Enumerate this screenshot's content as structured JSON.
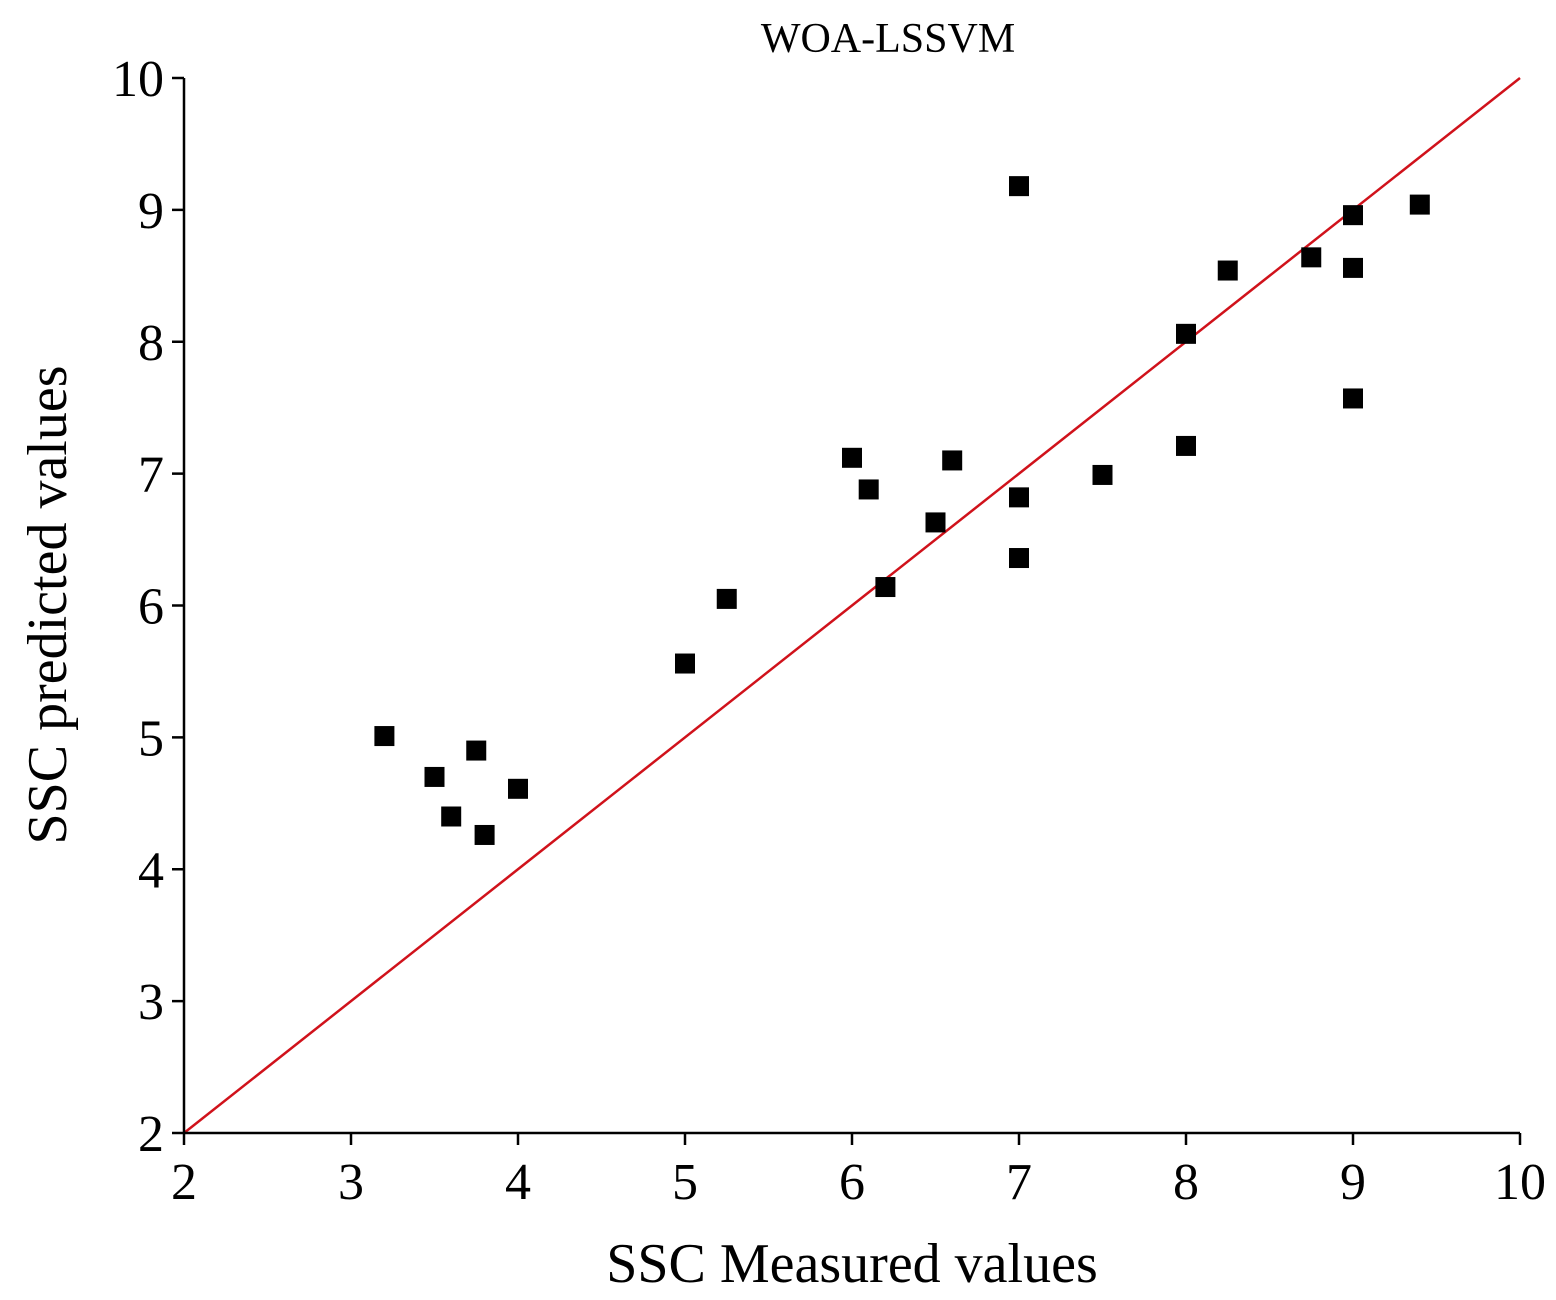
{
  "chart_data": {
    "type": "scatter",
    "title": "WOA-LSSVM",
    "xlabel": "SSC Measured values",
    "ylabel": "SSC predicted values",
    "xlim": [
      2,
      10
    ],
    "ylim": [
      2,
      10
    ],
    "xticks": [
      "2",
      "3",
      "4",
      "5",
      "6",
      "7",
      "8",
      "9",
      "10"
    ],
    "yticks": [
      "2",
      "3",
      "4",
      "5",
      "6",
      "7",
      "8",
      "9",
      "10"
    ],
    "grid": false,
    "marker_color": "#000000",
    "reference_line": {
      "from": [
        2,
        2
      ],
      "to": [
        10,
        10
      ],
      "color": "#d0121b"
    },
    "series": [
      {
        "points": [
          [
            3.2,
            5.01
          ],
          [
            3.5,
            4.7
          ],
          [
            3.6,
            4.4
          ],
          [
            3.75,
            4.9
          ],
          [
            3.8,
            4.26
          ],
          [
            4.0,
            4.61
          ],
          [
            5.0,
            5.56
          ],
          [
            5.25,
            6.05
          ],
          [
            6.0,
            7.12
          ],
          [
            6.1,
            6.88
          ],
          [
            6.2,
            6.14
          ],
          [
            6.5,
            6.63
          ],
          [
            6.6,
            7.1
          ],
          [
            7.0,
            9.18
          ],
          [
            7.0,
            6.82
          ],
          [
            7.0,
            6.36
          ],
          [
            7.5,
            6.99
          ],
          [
            8.0,
            8.06
          ],
          [
            8.0,
            7.21
          ],
          [
            8.25,
            8.54
          ],
          [
            8.75,
            8.64
          ],
          [
            9.0,
            8.96
          ],
          [
            9.0,
            8.56
          ],
          [
            9.0,
            7.57
          ],
          [
            9.4,
            9.04
          ]
        ]
      }
    ]
  }
}
